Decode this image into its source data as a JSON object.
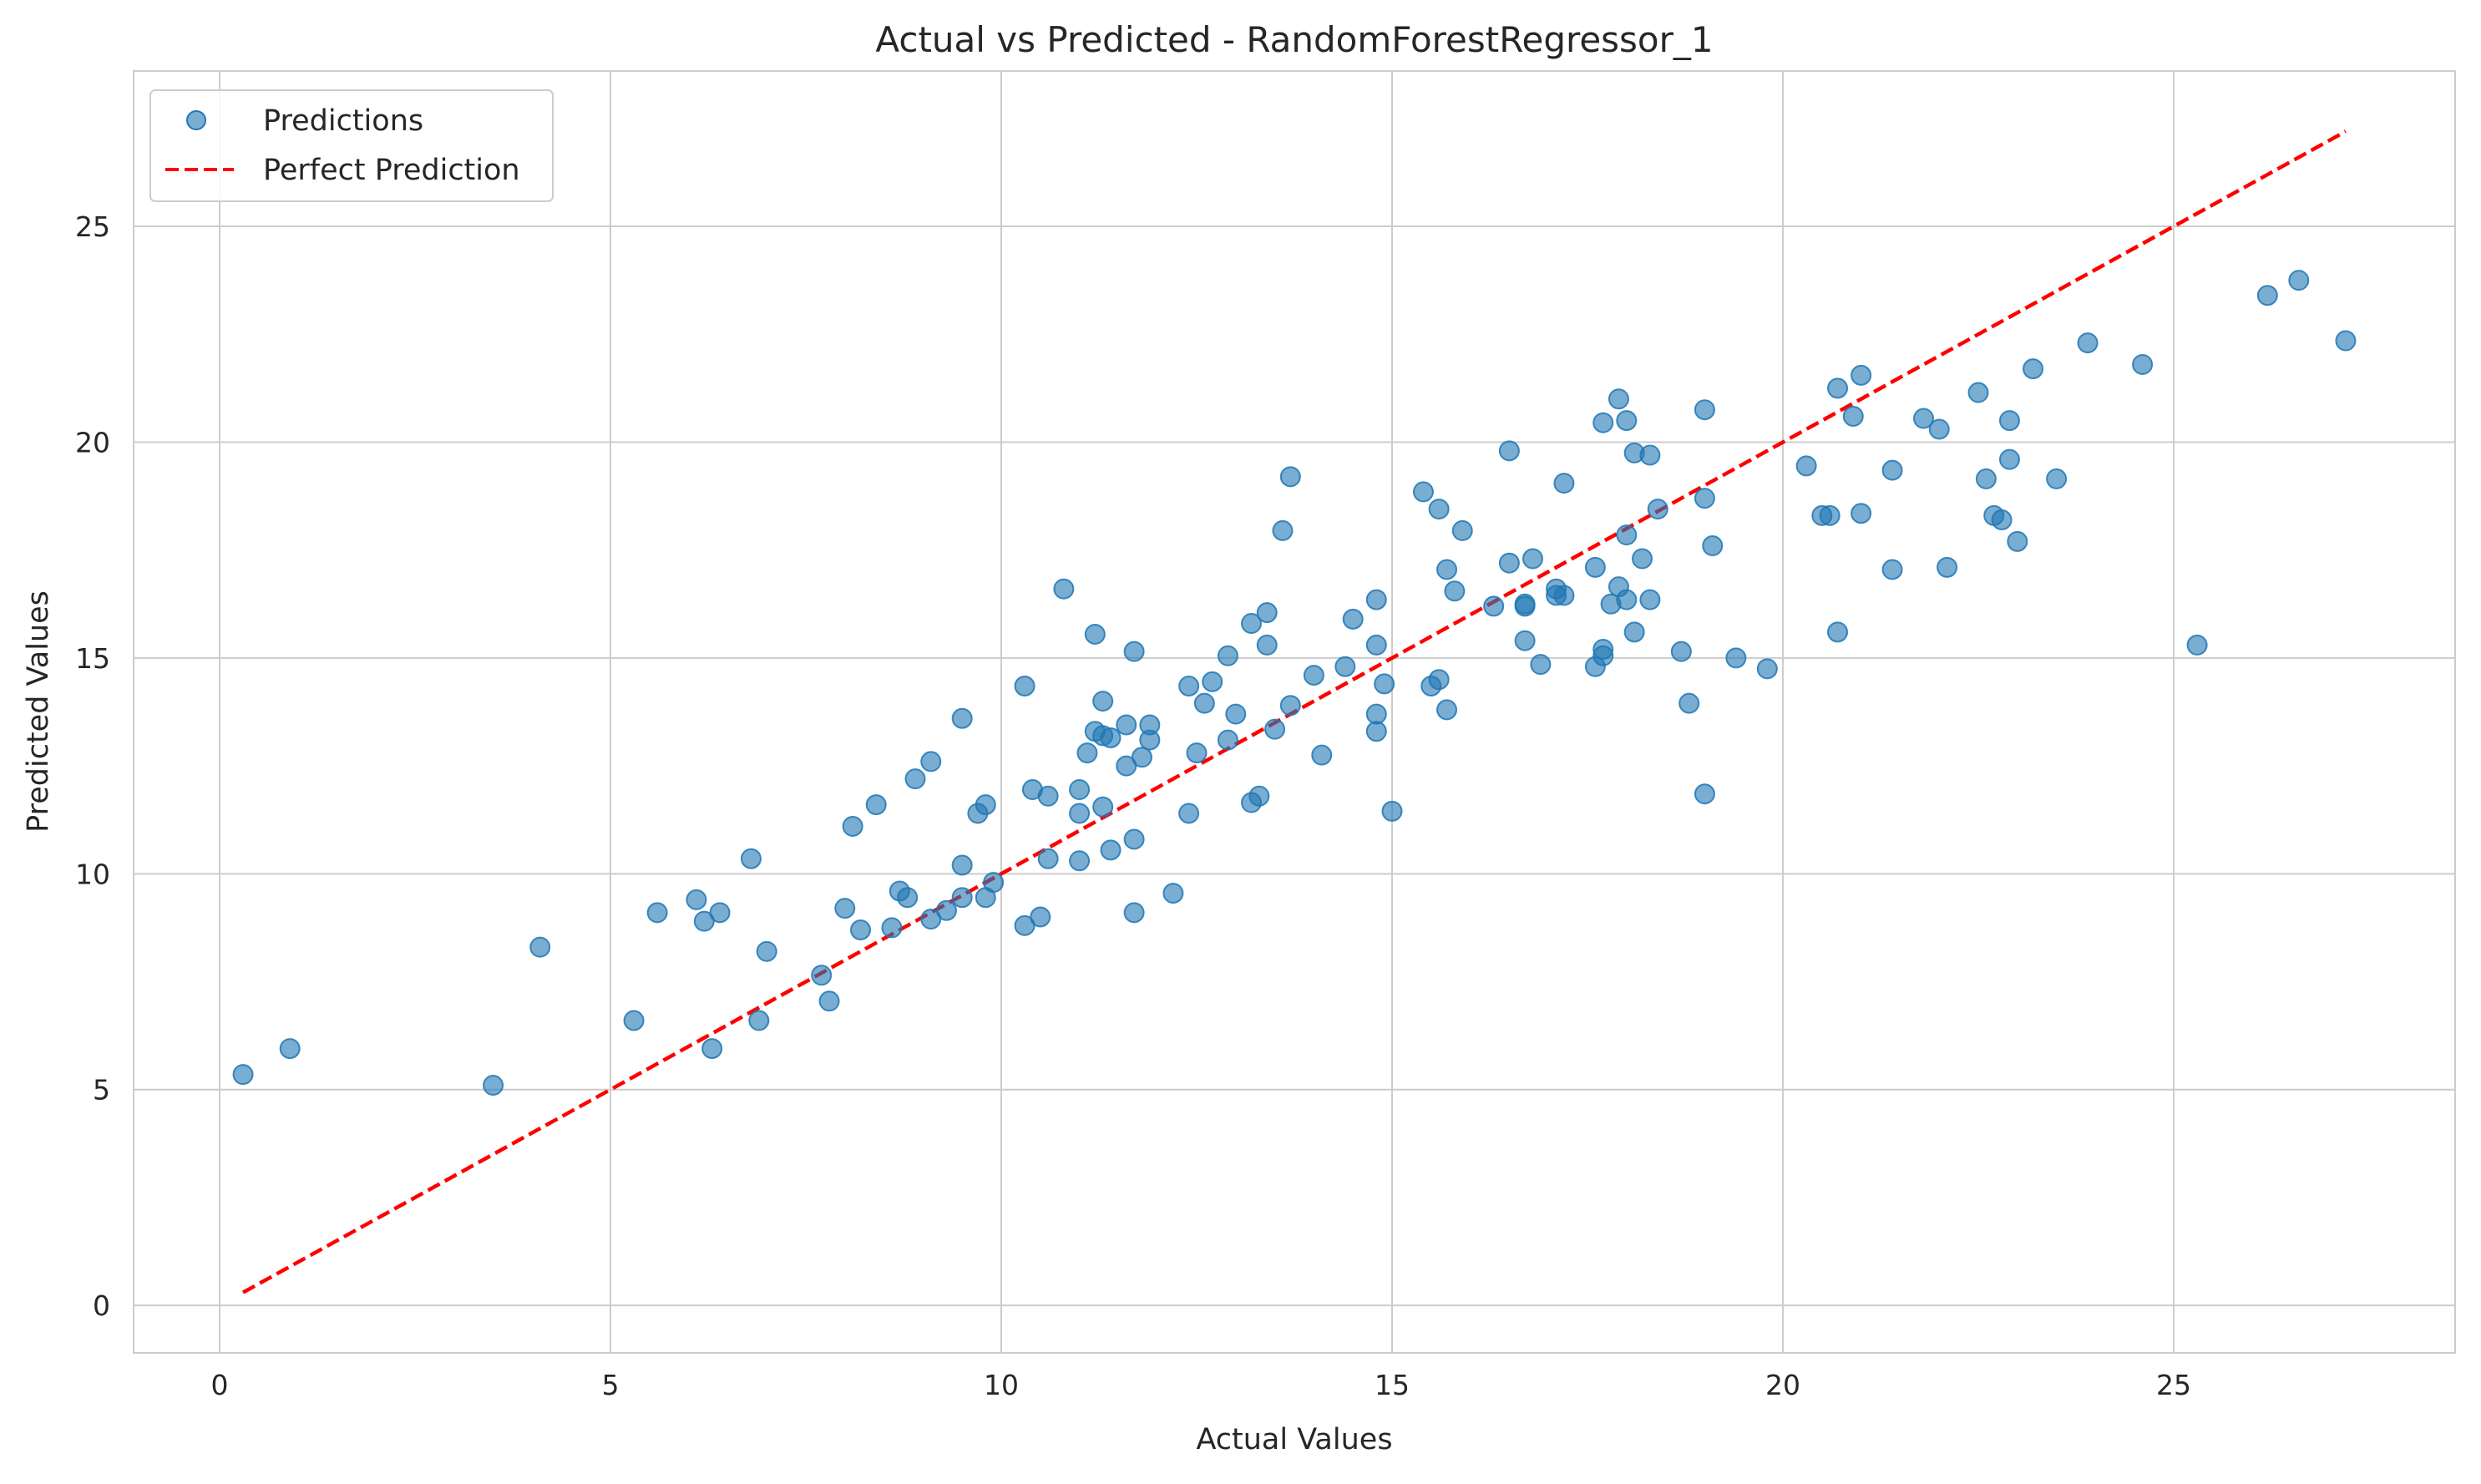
{
  "chart_data": {
    "type": "scatter",
    "title": "Actual vs Predicted - RandomForestRegressor_1",
    "xlabel": "Actual Values",
    "ylabel": "Predicted Values",
    "xlim": [
      -1.1,
      28.6
    ],
    "ylim": [
      -1.1,
      28.6
    ],
    "xticks": [
      0,
      5,
      10,
      15,
      20,
      25
    ],
    "yticks": [
      0,
      5,
      10,
      15,
      20,
      25
    ],
    "grid": true,
    "legend_position": "top-left",
    "colors": {
      "points": "#1f77b4",
      "perfect_line": "#ff0000",
      "grid": "#cccccc",
      "axes": "#cccccc"
    },
    "series": [
      {
        "name": "Predictions",
        "kind": "scatter",
        "points": [
          [
            0.3,
            5.35
          ],
          [
            0.9,
            5.95
          ],
          [
            3.5,
            5.1
          ],
          [
            4.1,
            8.3
          ],
          [
            5.3,
            6.6
          ],
          [
            5.6,
            9.1
          ],
          [
            6.1,
            9.4
          ],
          [
            6.2,
            8.9
          ],
          [
            6.3,
            5.95
          ],
          [
            6.4,
            9.1
          ],
          [
            6.8,
            10.35
          ],
          [
            6.9,
            6.6
          ],
          [
            7.0,
            8.2
          ],
          [
            7.7,
            7.65
          ],
          [
            7.8,
            7.05
          ],
          [
            8.0,
            9.2
          ],
          [
            8.1,
            11.1
          ],
          [
            8.2,
            8.7
          ],
          [
            8.4,
            11.6
          ],
          [
            8.6,
            8.75
          ],
          [
            8.7,
            9.6
          ],
          [
            8.8,
            9.45
          ],
          [
            8.9,
            12.2
          ],
          [
            9.1,
            12.6
          ],
          [
            9.1,
            8.95
          ],
          [
            9.3,
            9.15
          ],
          [
            9.5,
            10.2
          ],
          [
            9.5,
            13.6
          ],
          [
            9.5,
            9.45
          ],
          [
            9.7,
            11.4
          ],
          [
            9.8,
            11.6
          ],
          [
            9.8,
            9.45
          ],
          [
            9.9,
            9.8
          ],
          [
            10.3,
            14.35
          ],
          [
            10.3,
            8.8
          ],
          [
            10.4,
            11.95
          ],
          [
            10.5,
            9.0
          ],
          [
            10.6,
            11.8
          ],
          [
            10.6,
            10.35
          ],
          [
            10.8,
            16.6
          ],
          [
            11.0,
            11.95
          ],
          [
            11.0,
            11.4
          ],
          [
            11.0,
            10.3
          ],
          [
            11.1,
            12.8
          ],
          [
            11.2,
            15.55
          ],
          [
            11.2,
            13.3
          ],
          [
            11.3,
            13.2
          ],
          [
            11.3,
            14.0
          ],
          [
            11.3,
            11.55
          ],
          [
            11.4,
            10.55
          ],
          [
            11.4,
            13.15
          ],
          [
            11.6,
            13.45
          ],
          [
            11.6,
            12.5
          ],
          [
            11.7,
            15.15
          ],
          [
            11.7,
            10.8
          ],
          [
            11.7,
            9.1
          ],
          [
            11.8,
            12.7
          ],
          [
            11.9,
            13.1
          ],
          [
            11.9,
            13.45
          ],
          [
            12.2,
            9.55
          ],
          [
            12.4,
            11.4
          ],
          [
            12.4,
            14.35
          ],
          [
            12.5,
            12.8
          ],
          [
            12.6,
            13.95
          ],
          [
            12.7,
            14.45
          ],
          [
            12.9,
            15.05
          ],
          [
            12.9,
            13.1
          ],
          [
            13.0,
            13.7
          ],
          [
            13.2,
            15.8
          ],
          [
            13.2,
            11.65
          ],
          [
            13.3,
            11.8
          ],
          [
            13.4,
            16.05
          ],
          [
            13.4,
            15.3
          ],
          [
            13.5,
            13.35
          ],
          [
            13.6,
            17.95
          ],
          [
            13.7,
            19.2
          ],
          [
            13.7,
            13.9
          ],
          [
            14.0,
            14.6
          ],
          [
            14.1,
            12.75
          ],
          [
            14.4,
            14.8
          ],
          [
            14.5,
            15.9
          ],
          [
            14.8,
            16.35
          ],
          [
            14.8,
            15.3
          ],
          [
            14.8,
            13.3
          ],
          [
            14.8,
            13.7
          ],
          [
            14.9,
            14.4
          ],
          [
            15.0,
            11.45
          ],
          [
            15.4,
            18.85
          ],
          [
            15.5,
            14.35
          ],
          [
            15.6,
            18.45
          ],
          [
            15.6,
            14.5
          ],
          [
            15.7,
            13.8
          ],
          [
            15.7,
            17.05
          ],
          [
            15.8,
            16.55
          ],
          [
            15.9,
            17.95
          ],
          [
            16.3,
            16.2
          ],
          [
            16.5,
            19.8
          ],
          [
            16.5,
            17.2
          ],
          [
            16.7,
            15.4
          ],
          [
            16.7,
            16.25
          ],
          [
            16.7,
            16.2
          ],
          [
            16.8,
            17.3
          ],
          [
            16.9,
            14.85
          ],
          [
            17.1,
            16.6
          ],
          [
            17.1,
            16.45
          ],
          [
            17.2,
            19.05
          ],
          [
            17.2,
            16.45
          ],
          [
            17.6,
            14.8
          ],
          [
            17.6,
            17.1
          ],
          [
            17.7,
            15.05
          ],
          [
            17.7,
            15.2
          ],
          [
            17.7,
            20.45
          ],
          [
            17.8,
            16.25
          ],
          [
            17.9,
            16.65
          ],
          [
            17.9,
            21.0
          ],
          [
            18.0,
            17.85
          ],
          [
            18.0,
            16.35
          ],
          [
            18.0,
            20.5
          ],
          [
            18.1,
            15.6
          ],
          [
            18.1,
            19.75
          ],
          [
            18.2,
            17.3
          ],
          [
            18.3,
            16.35
          ],
          [
            18.3,
            19.7
          ],
          [
            18.4,
            18.45
          ],
          [
            18.7,
            15.15
          ],
          [
            18.8,
            13.95
          ],
          [
            19.0,
            20.75
          ],
          [
            19.0,
            18.7
          ],
          [
            19.0,
            11.85
          ],
          [
            19.1,
            17.6
          ],
          [
            19.4,
            15.0
          ],
          [
            19.8,
            14.75
          ],
          [
            20.3,
            19.45
          ],
          [
            20.5,
            18.3
          ],
          [
            20.6,
            18.3
          ],
          [
            20.7,
            21.25
          ],
          [
            20.7,
            15.6
          ],
          [
            20.9,
            20.6
          ],
          [
            21.0,
            21.55
          ],
          [
            21.0,
            18.35
          ],
          [
            21.4,
            19.35
          ],
          [
            21.4,
            17.05
          ],
          [
            21.8,
            20.55
          ],
          [
            22.0,
            20.3
          ],
          [
            22.1,
            17.1
          ],
          [
            22.5,
            21.15
          ],
          [
            22.6,
            19.15
          ],
          [
            22.7,
            18.3
          ],
          [
            22.8,
            18.2
          ],
          [
            22.9,
            20.5
          ],
          [
            22.9,
            19.6
          ],
          [
            23.0,
            17.7
          ],
          [
            23.2,
            21.7
          ],
          [
            23.5,
            19.15
          ],
          [
            23.9,
            22.3
          ],
          [
            24.6,
            21.8
          ],
          [
            25.3,
            15.3
          ],
          [
            26.2,
            23.4
          ],
          [
            26.6,
            23.75
          ],
          [
            27.2,
            22.35
          ]
        ]
      },
      {
        "name": "Perfect Prediction",
        "kind": "line",
        "style": "dashed",
        "points": [
          [
            0.3,
            0.3
          ],
          [
            27.2,
            27.2
          ]
        ]
      }
    ]
  }
}
